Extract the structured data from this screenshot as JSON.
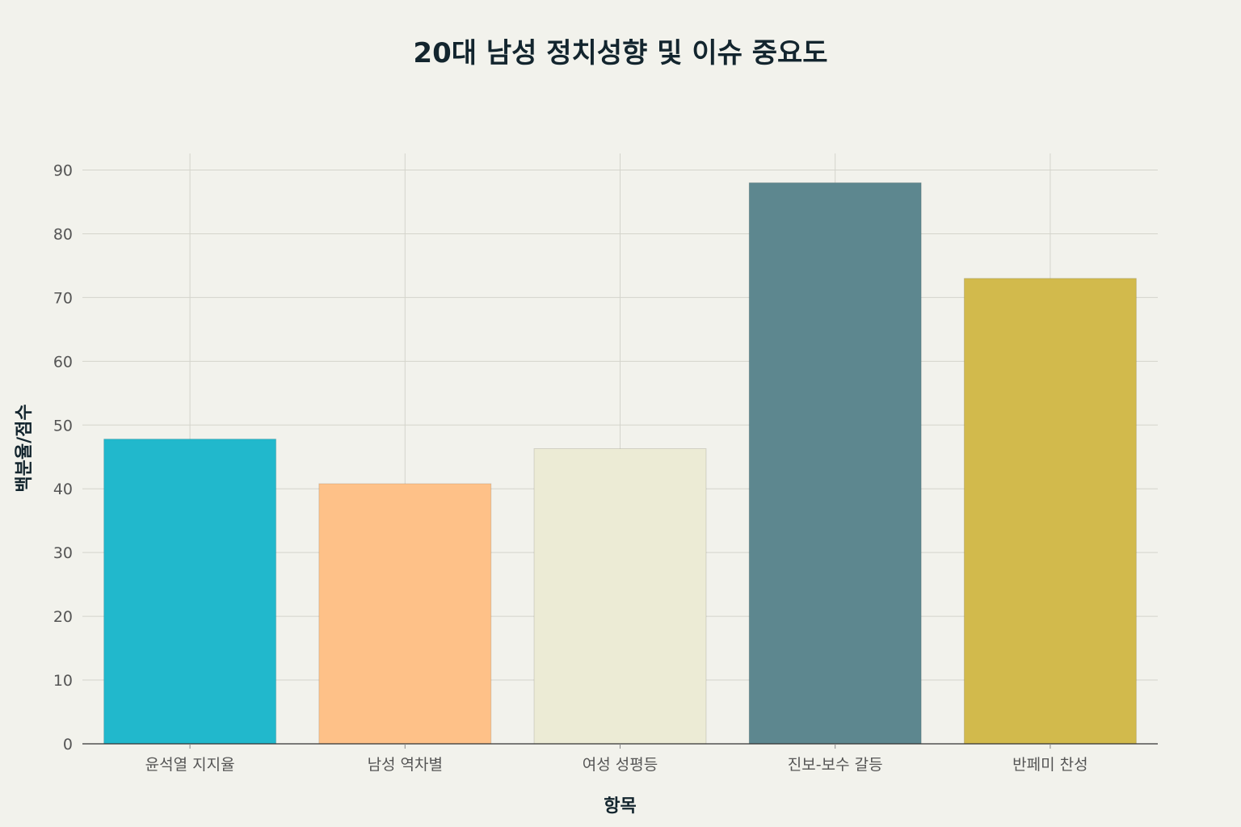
{
  "chart_data": {
    "type": "bar",
    "title": "20대 남성 정치성향 및 이슈 중요도",
    "xlabel": "항목",
    "ylabel": "백분율/점수",
    "categories": [
      "윤석열 지지율",
      "남성 역차별",
      "여성 성평등",
      "진보-보수 갈등",
      "반페미 찬성"
    ],
    "values": [
      47.8,
      40.8,
      46.3,
      88,
      73
    ],
    "colors": [
      "#21b8cc",
      "#fec188",
      "#ecebd5",
      "#5d878f",
      "#d2ba4c"
    ],
    "yticks": [
      0,
      10,
      20,
      30,
      40,
      50,
      60,
      70,
      80,
      90
    ],
    "ylim": [
      0,
      92.6
    ],
    "grid": true
  }
}
